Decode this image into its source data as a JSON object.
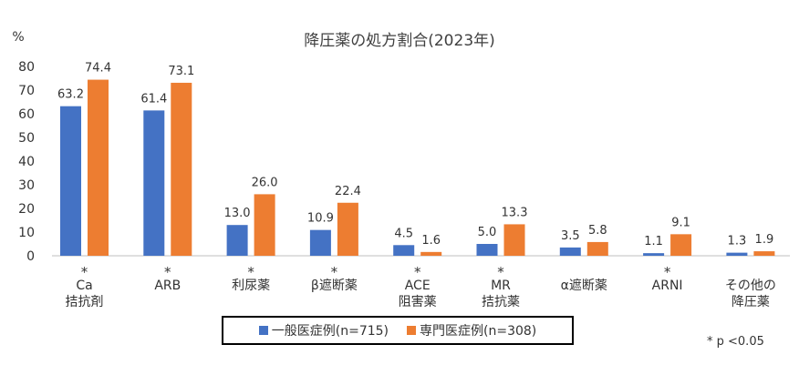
{
  "chart_data": {
    "type": "bar",
    "title": "降圧薬の処方割合(2023年)",
    "ylabel": "%",
    "ylim": [
      0,
      80
    ],
    "yticks": [
      0,
      10,
      20,
      30,
      40,
      50,
      60,
      70,
      80
    ],
    "grid": false,
    "legend_position": "bottom",
    "categories": [
      {
        "lines": [
          "Ca",
          "拮抗剤"
        ],
        "star": "*"
      },
      {
        "lines": [
          "ARB"
        ],
        "star": "*"
      },
      {
        "lines": [
          "利尿薬"
        ],
        "star": "*"
      },
      {
        "lines": [
          "β遮断薬"
        ],
        "star": "*"
      },
      {
        "lines": [
          "ACE",
          "阻害薬"
        ],
        "star": "*"
      },
      {
        "lines": [
          "MR",
          "拮抗薬"
        ],
        "star": "*"
      },
      {
        "lines": [
          "α遮断薬"
        ],
        "star": ""
      },
      {
        "lines": [
          "ARNI"
        ],
        "star": "*"
      },
      {
        "lines": [
          "その他の",
          "降圧薬"
        ],
        "star": ""
      }
    ],
    "series": [
      {
        "name": "一般医症例(n=715)",
        "color": "#4472C4",
        "values": [
          63.2,
          61.4,
          13.0,
          10.9,
          4.5,
          5.0,
          3.5,
          1.1,
          1.3
        ],
        "labels": [
          "63.2",
          "61.4",
          "13.0",
          "10.9",
          "4.5",
          "5.0",
          "3.5",
          "1.1",
          "1.3"
        ]
      },
      {
        "name": "専門医症例(n=308)",
        "color": "#ED7D31",
        "values": [
          74.4,
          73.1,
          26.0,
          22.4,
          1.6,
          13.3,
          5.8,
          9.1,
          1.9
        ],
        "labels": [
          "74.4",
          "73.1",
          "26.0",
          "22.4",
          "1.6",
          "13.3",
          "5.8",
          "9.1",
          "1.9"
        ]
      }
    ]
  },
  "note": "* p <0.05"
}
